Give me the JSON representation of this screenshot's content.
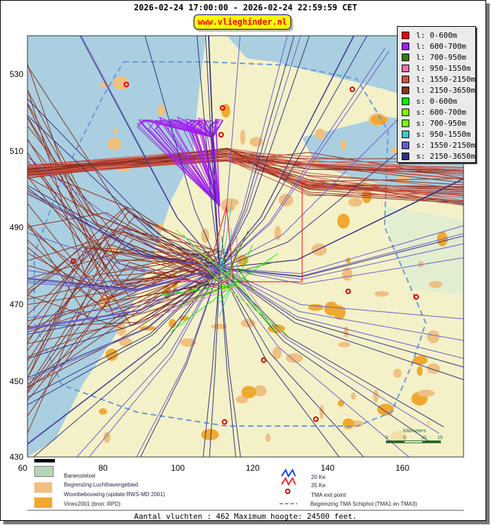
{
  "header": {
    "title": "2026-02-24 17:00:00 - 2026-02-24 22:59:59 CET",
    "brand": "www.vlieghinder.nl"
  },
  "axes": {
    "x_ticks": [
      "60",
      "80",
      "100",
      "120",
      "140",
      "160"
    ],
    "y_ticks": [
      "530",
      "510",
      "490",
      "470",
      "450",
      "430"
    ]
  },
  "legend": [
    {
      "label": "l: 0-600m",
      "color": "#ff0000"
    },
    {
      "label": "l: 600-700m",
      "color": "#a020f0"
    },
    {
      "label": "l: 700-950m",
      "color": "#3c7d00"
    },
    {
      "label": "l: 950-1550m",
      "color": "#f070b0"
    },
    {
      "label": "l: 1550-2150m",
      "color": "#d05040"
    },
    {
      "label": "l: 2150-3650m",
      "color": "#8b3020"
    },
    {
      "label": "s: 0-600m",
      "color": "#00ff00"
    },
    {
      "label": "s: 600-700m",
      "color": "#80ff00"
    },
    {
      "label": "s: 700-950m",
      "color": "#80ff00"
    },
    {
      "label": "s: 950-1550m",
      "color": "#40c8c8"
    },
    {
      "label": "s: 1550-2150m",
      "color": "#6a5acd"
    },
    {
      "label": "s: 2150-3650m",
      "color": "#303080"
    }
  ],
  "scale": {
    "title": "Kilometers",
    "ticks": [
      "0",
      "5",
      "10",
      "15"
    ]
  },
  "map_legend": {
    "runways": "Banenstelsel",
    "airport_boundary": "Begrenzing Luchthavengebied",
    "housing": "Woonbebouwing (update RWS-MD 2001)",
    "vinex": "Vinex2001 (bron: RPD)",
    "ke20": "20 Ke",
    "ke35": "35 Ke",
    "tma_exit": "TMA exit point",
    "tma_boundary": "Begrenzing TMA Schiphol  (TMA1 en TMA3)"
  },
  "footer": "Aantal vluchten : 462 Maximum hoogte: 24500 feet."
}
